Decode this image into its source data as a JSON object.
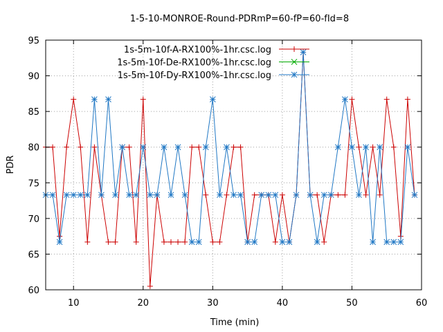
{
  "chart_data": {
    "type": "line",
    "title": "1-5-10-MONROE-Round-PDRmP=60-fP=60-fId=8",
    "xlabel": "Time (min)",
    "ylabel": "PDR",
    "xlim": [
      6,
      60
    ],
    "ylim": [
      60,
      95
    ],
    "xticks": [
      10,
      20,
      30,
      40,
      50,
      60
    ],
    "yticks": [
      60,
      65,
      70,
      75,
      80,
      85,
      90,
      95
    ],
    "grid": true,
    "legend_position": "top-center",
    "series": [
      {
        "name": "1s-5m-10f-A-RX100%-1hr.csc.log",
        "color": "#cc0000",
        "marker": "plus",
        "points": [
          [
            6,
            80
          ],
          [
            7,
            80
          ],
          [
            8,
            67.5
          ],
          [
            9,
            80
          ],
          [
            10,
            86.7
          ],
          [
            11,
            80
          ],
          [
            12,
            66.7
          ],
          [
            13,
            80
          ],
          [
            14,
            73.3
          ],
          [
            15,
            66.7
          ],
          [
            16,
            66.7
          ],
          [
            17,
            80
          ],
          [
            18,
            80
          ],
          [
            19,
            66.7
          ],
          [
            20,
            86.7
          ],
          [
            21,
            60.5
          ],
          [
            22,
            73.3
          ],
          [
            23,
            66.7
          ],
          [
            24,
            66.7
          ],
          [
            25,
            66.7
          ],
          [
            26,
            66.7
          ],
          [
            27,
            80
          ],
          [
            28,
            80
          ],
          [
            29,
            73.3
          ],
          [
            30,
            66.7
          ],
          [
            31,
            66.7
          ],
          [
            32,
            73.3
          ],
          [
            33,
            80
          ],
          [
            34,
            80
          ],
          [
            35,
            66.7
          ],
          [
            36,
            73.3
          ],
          [
            37,
            73.3
          ],
          [
            38,
            73.3
          ],
          [
            39,
            66.7
          ],
          [
            40,
            73.3
          ],
          [
            41,
            66.7
          ],
          [
            42,
            73.3
          ],
          [
            43,
            93.3
          ],
          [
            44,
            73.3
          ],
          [
            45,
            73.3
          ],
          [
            46,
            66.7
          ],
          [
            47,
            73.3
          ],
          [
            48,
            73.3
          ],
          [
            49,
            73.3
          ],
          [
            50,
            86.7
          ],
          [
            51,
            80
          ],
          [
            52,
            73.3
          ],
          [
            53,
            80
          ],
          [
            54,
            73.3
          ],
          [
            55,
            86.7
          ],
          [
            56,
            80
          ],
          [
            57,
            67.5
          ],
          [
            58,
            86.7
          ],
          [
            59,
            73.3
          ]
        ]
      },
      {
        "name": "1s-5m-10f-De-RX100%-1hr.csc.log",
        "color": "#00aa00",
        "marker": "cross",
        "points": []
      },
      {
        "name": "1s-5m-10f-Dy-RX100%-1hr.csc.log",
        "color": "#1f77c4",
        "marker": "star",
        "points": [
          [
            6,
            73.3
          ],
          [
            7,
            73.3
          ],
          [
            8,
            66.7
          ],
          [
            9,
            73.3
          ],
          [
            10,
            73.3
          ],
          [
            11,
            73.3
          ],
          [
            12,
            73.3
          ],
          [
            13,
            86.7
          ],
          [
            14,
            73.3
          ],
          [
            15,
            86.7
          ],
          [
            16,
            73.3
          ],
          [
            17,
            80
          ],
          [
            18,
            73.3
          ],
          [
            19,
            73.3
          ],
          [
            20,
            80
          ],
          [
            21,
            73.3
          ],
          [
            22,
            73.3
          ],
          [
            23,
            80
          ],
          [
            24,
            73.3
          ],
          [
            25,
            80
          ],
          [
            26,
            73.3
          ],
          [
            27,
            66.7
          ],
          [
            28,
            66.7
          ],
          [
            29,
            80
          ],
          [
            30,
            86.7
          ],
          [
            31,
            73.3
          ],
          [
            32,
            80
          ],
          [
            33,
            73.3
          ],
          [
            34,
            73.3
          ],
          [
            35,
            66.7
          ],
          [
            36,
            66.7
          ],
          [
            37,
            73.3
          ],
          [
            38,
            73.3
          ],
          [
            39,
            73.3
          ],
          [
            40,
            66.7
          ],
          [
            41,
            66.7
          ],
          [
            42,
            73.3
          ],
          [
            43,
            93.3
          ],
          [
            44,
            73.3
          ],
          [
            45,
            66.7
          ],
          [
            46,
            73.3
          ],
          [
            47,
            73.3
          ],
          [
            48,
            80
          ],
          [
            49,
            86.7
          ],
          [
            50,
            80
          ],
          [
            51,
            73.3
          ],
          [
            52,
            80
          ],
          [
            53,
            66.7
          ],
          [
            54,
            80
          ],
          [
            55,
            66.7
          ],
          [
            56,
            66.7
          ],
          [
            57,
            66.7
          ],
          [
            58,
            80
          ],
          [
            59,
            73.3
          ]
        ]
      }
    ]
  }
}
